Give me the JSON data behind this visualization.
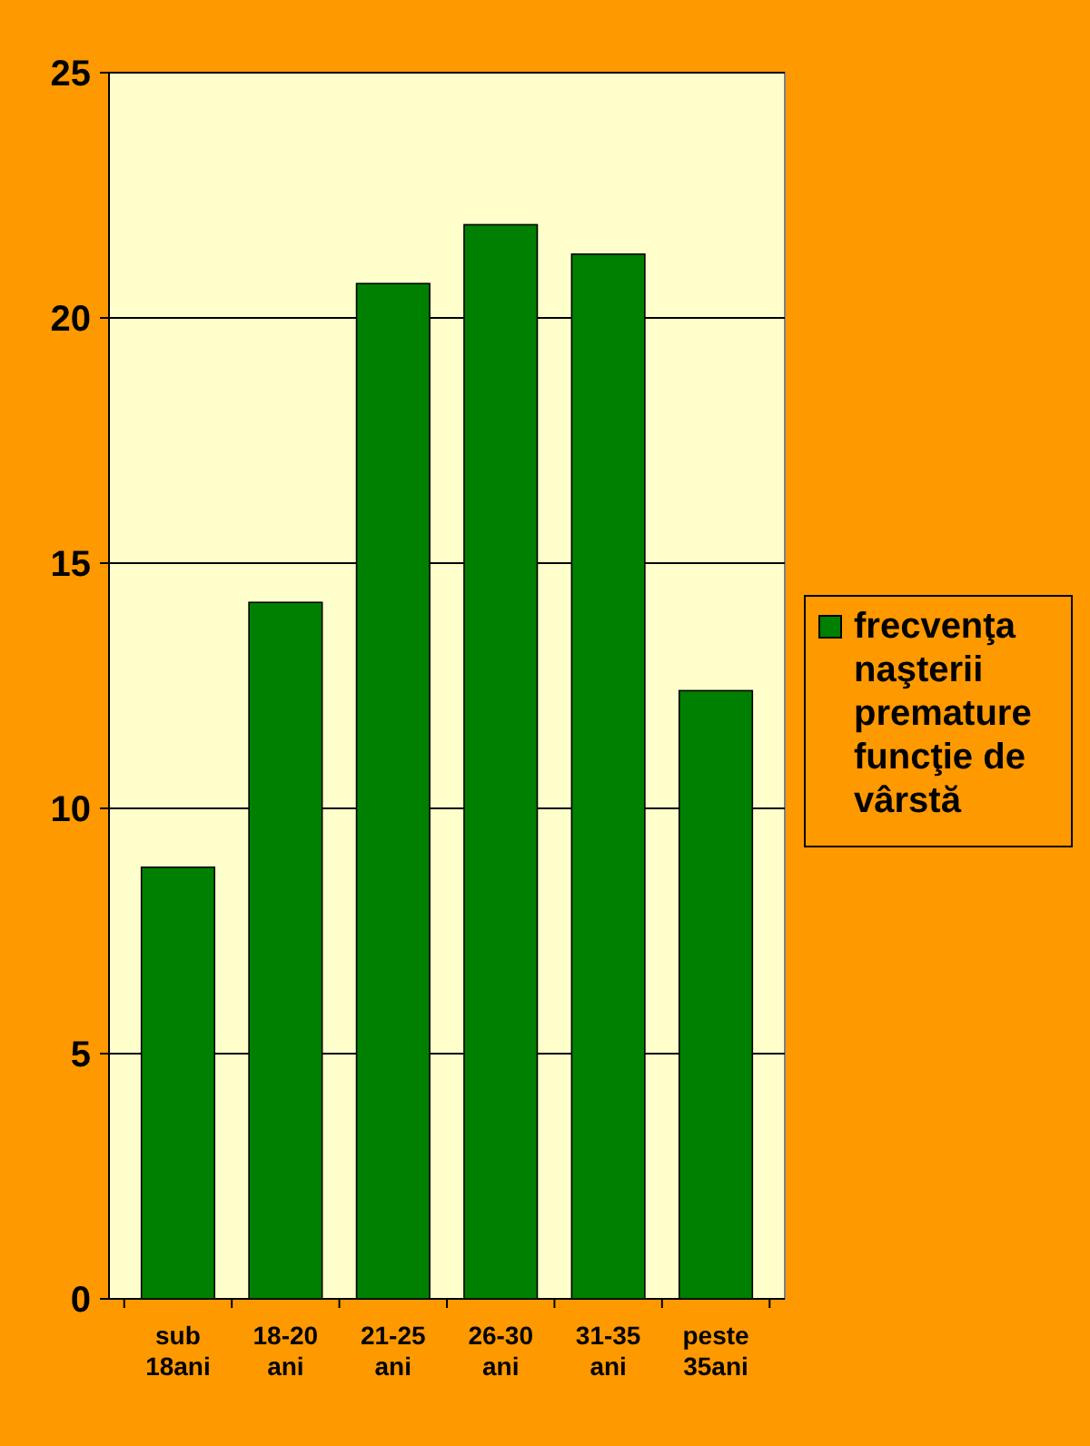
{
  "chart_data": {
    "type": "bar",
    "categories": [
      "sub 18ani",
      "18-20 ani",
      "21-25 ani",
      "26-30 ani",
      "31-35 ani",
      "peste 35ani"
    ],
    "series": [
      {
        "name": "frecvenţa naşterii premature funcţie de vârstă",
        "color": "#008000",
        "values": [
          8.8,
          14.2,
          20.7,
          21.9,
          21.3,
          12.4
        ]
      }
    ],
    "ylim": [
      0,
      25
    ],
    "yticks": [
      0,
      5,
      10,
      15,
      20,
      25
    ],
    "grid": "y",
    "legend": "right"
  }
}
